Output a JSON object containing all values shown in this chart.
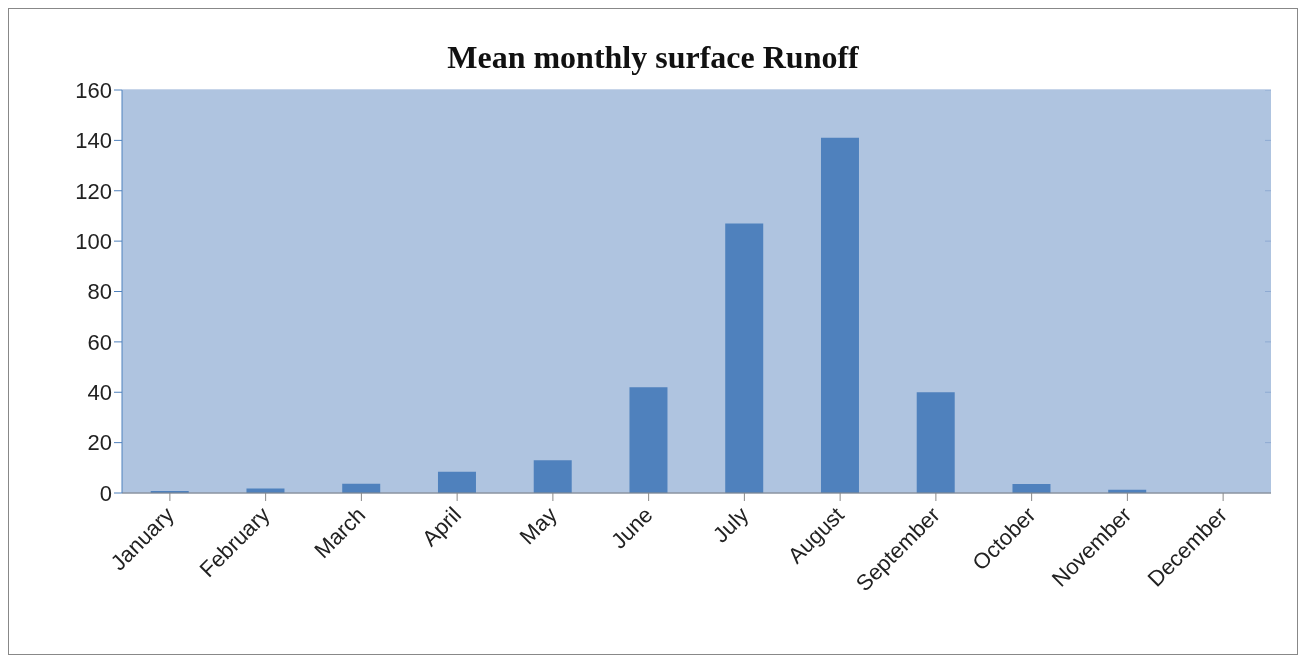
{
  "chart_data": {
    "type": "bar",
    "title": "Mean monthly surface Runoff",
    "categories": [
      "January",
      "February",
      "March",
      "April",
      "May",
      "June",
      "July",
      "August",
      "September",
      "October",
      "November",
      "December"
    ],
    "values": [
      0.8,
      1.8,
      3.7,
      8.4,
      13,
      42,
      107,
      141,
      40,
      3.6,
      1.3,
      0
    ],
    "color": "#4f81bd",
    "ylim": [
      0,
      160
    ],
    "yticks": [
      0,
      20,
      40,
      60,
      80,
      100,
      120,
      140,
      160
    ],
    "grid": "y",
    "legend": false
  }
}
